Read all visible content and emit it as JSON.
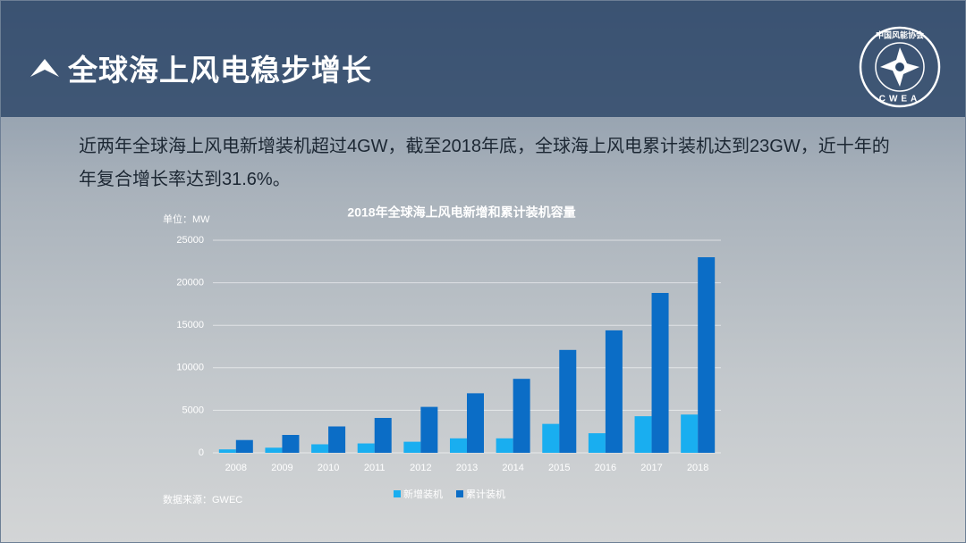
{
  "header": {
    "title": "全球海上风电稳步增长",
    "logo_name": "中国风能协会",
    "logo_abbr": "CWEA"
  },
  "body_text": "近两年全球海上风电新增装机超过4GW，截至2018年底，全球海上风电累计装机达到23GW，近十年的年复合增长率达到31.6%。",
  "chart_data": {
    "type": "bar",
    "title": "2018年全球海上风电新增和累计装机容量",
    "unit_label": "单位：MW",
    "source": "数据来源：GWEC",
    "categories": [
      "2008",
      "2009",
      "2010",
      "2011",
      "2012",
      "2013",
      "2014",
      "2015",
      "2016",
      "2017",
      "2018"
    ],
    "series": [
      {
        "name": "新增装机",
        "color": "#19aef0",
        "values": [
          400,
          600,
          1000,
          1100,
          1300,
          1700,
          1700,
          3400,
          2300,
          4300,
          4500
        ]
      },
      {
        "name": "累计装机",
        "color": "#0b6dc6",
        "values": [
          1500,
          2100,
          3100,
          4100,
          5400,
          7000,
          8700,
          12100,
          14400,
          18800,
          23000
        ]
      }
    ],
    "ylim": [
      0,
      25000
    ],
    "yticks": [
      0,
      5000,
      10000,
      15000,
      20000,
      25000
    ],
    "grid": true
  }
}
